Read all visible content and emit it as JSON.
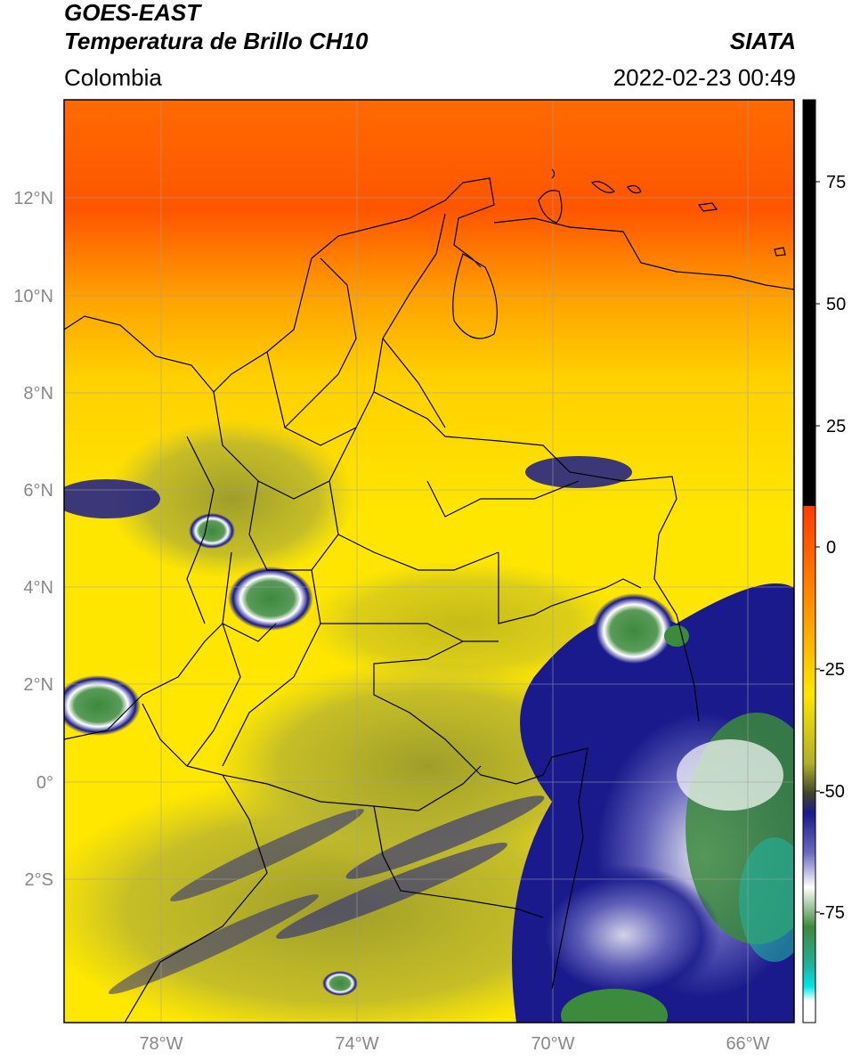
{
  "header": {
    "source": "GOES-EAST",
    "product": "Temperatura de Brillo CH10",
    "region": "Colombia",
    "brand": "SIATA",
    "timestamp": "2022-02-23 00:49"
  },
  "map": {
    "lat_ticks": [
      "12°N",
      "10°N",
      "8°N",
      "6°N",
      "4°N",
      "2°N",
      "0°",
      "2°S"
    ],
    "lon_ticks": [
      "78°W",
      "74°W",
      "70°W",
      "66°W"
    ],
    "lon_range": [
      -80,
      -65
    ],
    "lat_range": [
      -5,
      14
    ],
    "colorbar": {
      "ticks": [
        "75",
        "50",
        "25",
        "0",
        "-25",
        "-50",
        "-75"
      ],
      "range": [
        -95,
        90
      ],
      "colors": {
        "black": "#000000",
        "red": "#e11a00",
        "orange": "#ff7a00",
        "yellow": "#ffe600",
        "olive": "#9f9e2a",
        "navy": "#1a1a8c",
        "white": "#ffffff",
        "green": "#3c8a3c",
        "teal": "#20b2a0",
        "cyan": "#00e5e5"
      }
    }
  }
}
